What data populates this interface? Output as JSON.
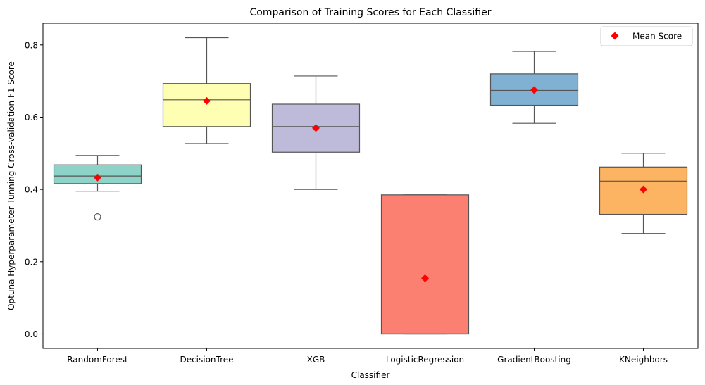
{
  "chart_data": {
    "type": "box",
    "title": "Comparison of Training Scores for Each Classifier",
    "xlabel": "Classifier",
    "ylabel": "Optuna Hyperparameter Tunning Cross-validation F1 Score",
    "ylim": [
      -0.04,
      0.86
    ],
    "yticks": [
      "0.0",
      "0.2",
      "0.4",
      "0.6",
      "0.8"
    ],
    "ytick_values": [
      0.0,
      0.2,
      0.4,
      0.6,
      0.8
    ],
    "grid": false,
    "legend": {
      "label": "Mean Score",
      "placement": "top-right",
      "marker": "diamond",
      "color": "#ff0000"
    },
    "categories": [
      "RandomForest",
      "DecisionTree",
      "XGB",
      "LogisticRegression",
      "GradientBoosting",
      "KNeighbors"
    ],
    "boxes": [
      {
        "name": "RandomForest",
        "whisker_low": 0.395,
        "q1": 0.416,
        "median": 0.437,
        "q3": 0.468,
        "whisker_high": 0.494,
        "mean": 0.433,
        "outliers": [
          0.324
        ],
        "color": "#8dd3c7"
      },
      {
        "name": "DecisionTree",
        "whisker_low": 0.527,
        "q1": 0.574,
        "median": 0.648,
        "q3": 0.693,
        "whisker_high": 0.82,
        "mean": 0.645,
        "outliers": [],
        "color": "#ffffb3"
      },
      {
        "name": "XGB",
        "whisker_low": 0.4,
        "q1": 0.503,
        "median": 0.574,
        "q3": 0.636,
        "whisker_high": 0.714,
        "mean": 0.57,
        "outliers": [],
        "color": "#bebada"
      },
      {
        "name": "LogisticRegression",
        "whisker_low": 0.0,
        "q1": 0.0,
        "median": 0.0,
        "q3": 0.385,
        "whisker_high": 0.385,
        "mean": 0.154,
        "outliers": [],
        "color": "#fb8072"
      },
      {
        "name": "GradientBoosting",
        "whisker_low": 0.583,
        "q1": 0.633,
        "median": 0.674,
        "q3": 0.72,
        "whisker_high": 0.782,
        "mean": 0.675,
        "outliers": [],
        "color": "#80b1d3"
      },
      {
        "name": "KNeighbors",
        "whisker_low": 0.278,
        "q1": 0.331,
        "median": 0.423,
        "q3": 0.462,
        "whisker_high": 0.5,
        "mean": 0.4,
        "outliers": [],
        "color": "#fdb462"
      }
    ]
  }
}
